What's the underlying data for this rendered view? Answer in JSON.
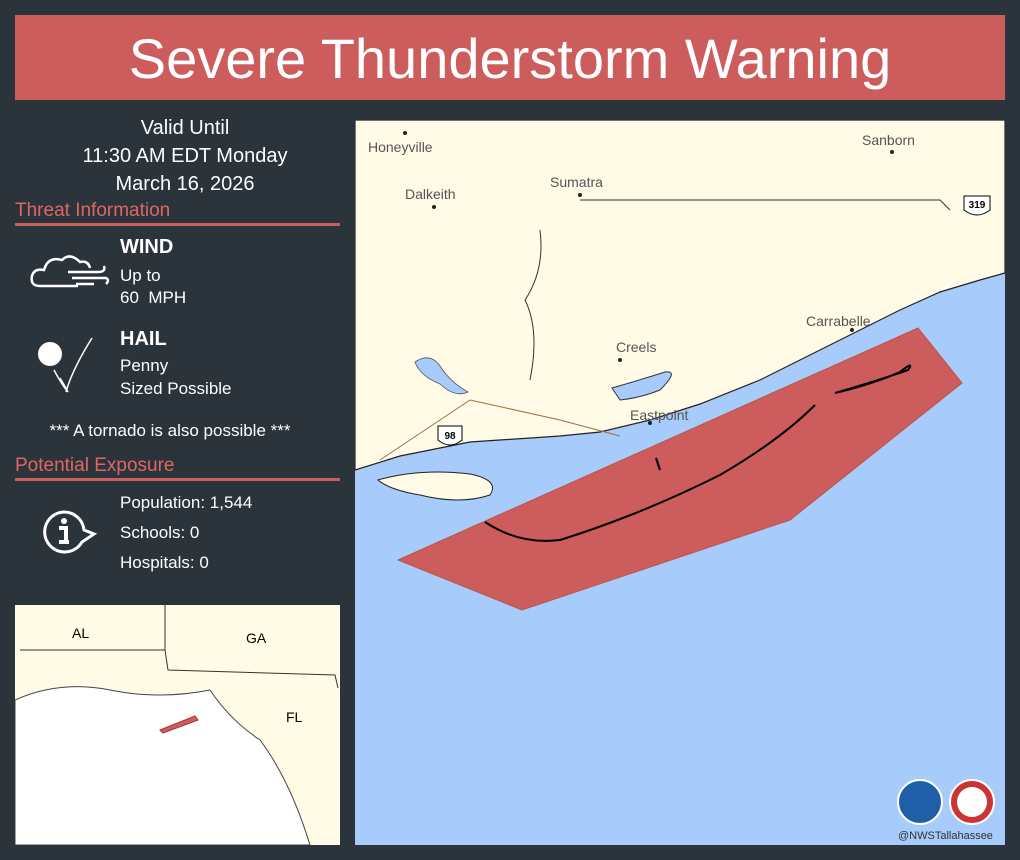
{
  "header": {
    "title": "Severe Thunderstorm Warning"
  },
  "valid": {
    "label": "Valid Until",
    "time": "11:30 AM EDT Monday",
    "date": "March 16, 2026"
  },
  "threat": {
    "heading": "Threat Information",
    "wind": {
      "label": "WIND",
      "line1": "Up to",
      "line2": "60  MPH"
    },
    "hail": {
      "label": "HAIL",
      "line1": "Penny",
      "line2": "Sized Possible"
    },
    "tornado": "*** A tornado is also possible ***"
  },
  "exposure": {
    "heading": "Potential Exposure",
    "population": "Population: 1,544",
    "schools": "Schools: 0",
    "hospitals": "Hospitals: 0"
  },
  "map": {
    "places": [
      "Honeyville",
      "Dalkeith",
      "Sumatra",
      "Sanborn",
      "Carrabelle",
      "Creels",
      "Eastpoint"
    ],
    "highways": [
      "98",
      "319"
    ]
  },
  "inset": {
    "labels": [
      "AL",
      "GA",
      "FL"
    ]
  },
  "footer": {
    "credit": "@NWSTallahassee"
  }
}
